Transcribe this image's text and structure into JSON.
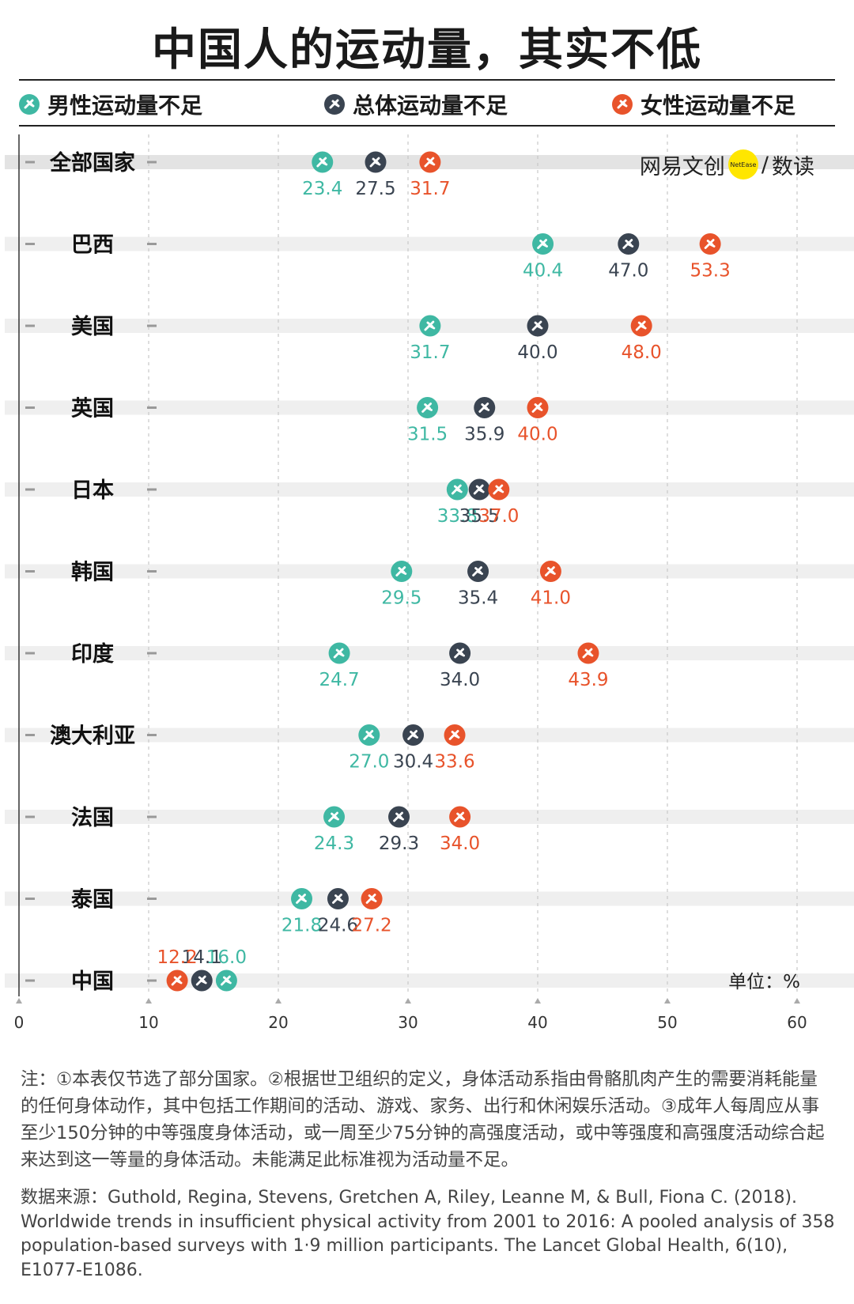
{
  "header": {
    "title": "中国人的运动量，其实不低"
  },
  "legend": {
    "male": "男性运动量不足",
    "overall": "总体运动量不足",
    "female": "女性运动量不足"
  },
  "brand": {
    "name": "网易文创",
    "badge": "NetEase",
    "suffix": "数读"
  },
  "colors": {
    "male": "#3fb8a3",
    "overall": "#3a4451",
    "female": "#e8532b",
    "band": "#efefef",
    "band_highlight": "#e3e3e3"
  },
  "unit_label": "单位：%",
  "chart_data": {
    "type": "scatter",
    "xlim": [
      0,
      60
    ],
    "xticks": [
      0,
      10,
      20,
      30,
      40,
      50,
      60
    ],
    "tick_labels": [
      "0",
      "10",
      "20",
      "30",
      "40",
      "50",
      "60"
    ],
    "categories": [
      "全部国家",
      "巴西",
      "美国",
      "英国",
      "日本",
      "韩国",
      "印度",
      "澳大利亚",
      "法国",
      "泰国",
      "中国"
    ],
    "series": [
      {
        "name": "男性运动量不足",
        "values": [
          23.4,
          40.4,
          31.7,
          31.5,
          33.8,
          29.5,
          24.7,
          27.0,
          24.3,
          21.8,
          16.0
        ]
      },
      {
        "name": "总体运动量不足",
        "values": [
          27.5,
          47.0,
          40.0,
          35.9,
          35.5,
          35.4,
          34.0,
          30.4,
          29.3,
          24.6,
          14.1
        ]
      },
      {
        "name": "女性运动量不足",
        "values": [
          31.7,
          53.3,
          48.0,
          40.0,
          37.0,
          41.0,
          43.9,
          33.6,
          34.0,
          27.2,
          12.2
        ]
      }
    ],
    "value_labels": [
      [
        "23.4",
        "27.5",
        "31.7"
      ],
      [
        "40.4",
        "47.0",
        "53.3"
      ],
      [
        "31.7",
        "40.0",
        "48.0"
      ],
      [
        "31.5",
        "35.9",
        "40.0"
      ],
      [
        "33.8",
        "35.5",
        "37.0"
      ],
      [
        "29.5",
        "35.4",
        "41.0"
      ],
      [
        "24.7",
        "34.0",
        "43.9"
      ],
      [
        "27.0",
        "30.4",
        "33.6"
      ],
      [
        "24.3",
        "29.3",
        "34.0"
      ],
      [
        "21.8",
        "24.6",
        "27.2"
      ],
      [
        "16.0",
        "14.1",
        "12.2"
      ]
    ],
    "highlight_category": "全部国家",
    "grid": true
  },
  "notes": {
    "text": "注：①本表仅节选了部分国家。②根据世卫组织的定义，身体活动系指由骨骼肌肉产生的需要消耗能量的任何身体动作，其中包括工作期间的活动、游戏、家务、出行和休闲娱乐活动。③成年人每周应从事至少150分钟的中等强度身体活动，或一周至少75分钟的高强度活动，或中等强度和高强度活动综合起来达到这一等量的身体活动。未能满足此标准视为活动量不足。",
    "source": "数据来源：Guthold, Regina, Stevens, Gretchen A, Riley, Leanne M, & Bull, Fiona C. (2018). Worldwide trends in insufficient physical activity from 2001 to 2016: A pooled analysis of 358 population-based surveys with 1·9 million participants. The Lancet Global Health, 6(10), E1077-E1086."
  }
}
